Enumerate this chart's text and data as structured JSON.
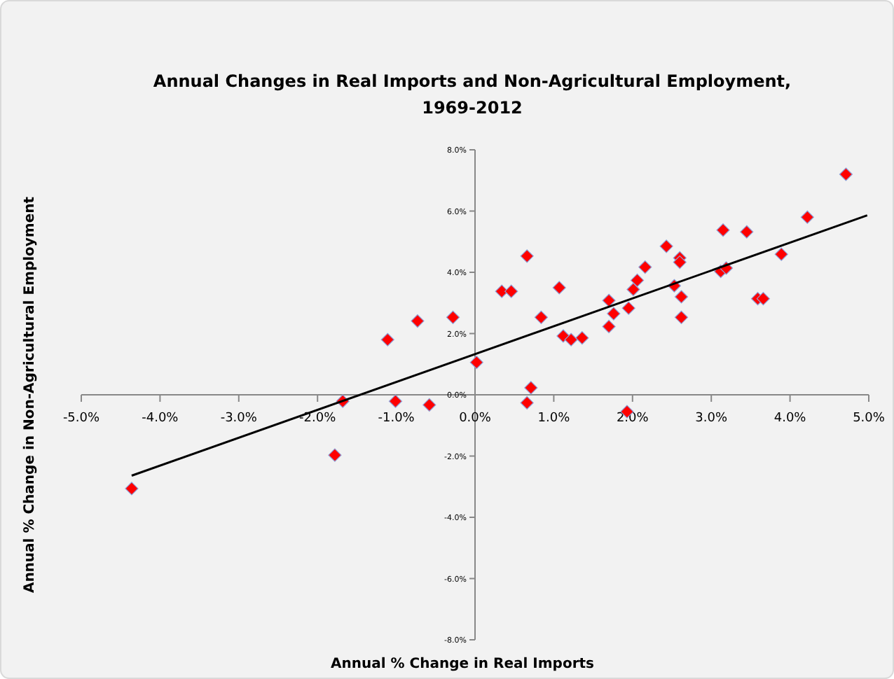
{
  "chart_data": {
    "type": "scatter",
    "title": "Annual Changes in Real Imports and Non-Agricultural Employment,\n1969-2012",
    "xlabel": "Annual  % Change  in Real Imports",
    "ylabel": "Annual  % Change  in Non-Agricultural  Employment",
    "xlim": [
      -5,
      5
    ],
    "ylim": [
      -8,
      8
    ],
    "xticks": [
      {
        "value": -5,
        "label": "-5.0%"
      },
      {
        "value": -4,
        "label": "-4.0%"
      },
      {
        "value": -3,
        "label": "-3.0%"
      },
      {
        "value": -2,
        "label": "-2.0%"
      },
      {
        "value": -1,
        "label": "-1.0%"
      },
      {
        "value": 0,
        "label": "0.0%"
      },
      {
        "value": 1,
        "label": "1.0%"
      },
      {
        "value": 2,
        "label": "2.0%"
      },
      {
        "value": 3,
        "label": "3.0%"
      },
      {
        "value": 4,
        "label": "4.0%"
      },
      {
        "value": 5,
        "label": "5.0%"
      }
    ],
    "yticks": [
      {
        "value": -8,
        "label": "-8.0%"
      },
      {
        "value": -6,
        "label": "-6.0%"
      },
      {
        "value": -4,
        "label": "-4.0%"
      },
      {
        "value": -2,
        "label": "-2.0%"
      },
      {
        "value": 0,
        "label": "0.0%"
      },
      {
        "value": 2,
        "label": "2.0%"
      },
      {
        "value": 4,
        "label": "4.0%"
      },
      {
        "value": 6,
        "label": "6.0%"
      },
      {
        "value": 8,
        "label": "8.0%"
      }
    ],
    "grid": false,
    "marker": "diamond",
    "series": [
      {
        "color": "#ff0000",
        "x": [
          -4.36,
          -1.78,
          -1.68,
          -1.11,
          -1.01,
          -0.73,
          -0.58,
          -0.28,
          0.02,
          0.34,
          0.46,
          0.66,
          0.71,
          0.66,
          0.84,
          1.07,
          1.12,
          1.22,
          1.36,
          1.7,
          1.7,
          1.76,
          1.93,
          1.95,
          2.01,
          2.06,
          2.16,
          2.43,
          2.53,
          2.6,
          2.6,
          2.62,
          2.62,
          3.15,
          3.12,
          3.19,
          3.45,
          3.59,
          3.66,
          3.89,
          4.22,
          4.71
        ],
        "values": [
          -3.06,
          -1.97,
          -0.21,
          1.8,
          -0.21,
          2.41,
          -0.33,
          2.53,
          1.06,
          3.38,
          3.38,
          4.53,
          0.23,
          -0.26,
          2.53,
          3.5,
          1.92,
          1.8,
          1.86,
          3.08,
          2.23,
          2.65,
          -0.55,
          2.83,
          3.44,
          3.74,
          4.17,
          4.85,
          3.56,
          4.47,
          4.33,
          3.2,
          2.53,
          5.38,
          4.03,
          4.14,
          5.32,
          3.14,
          3.14,
          4.59,
          5.8,
          7.2
        ]
      },
      {
        "type": "line",
        "color": "#000000",
        "marker": "none",
        "line_style": "solid",
        "x": [
          -4.36,
          4.98
        ],
        "values": [
          -2.64,
          5.86
        ]
      }
    ]
  }
}
